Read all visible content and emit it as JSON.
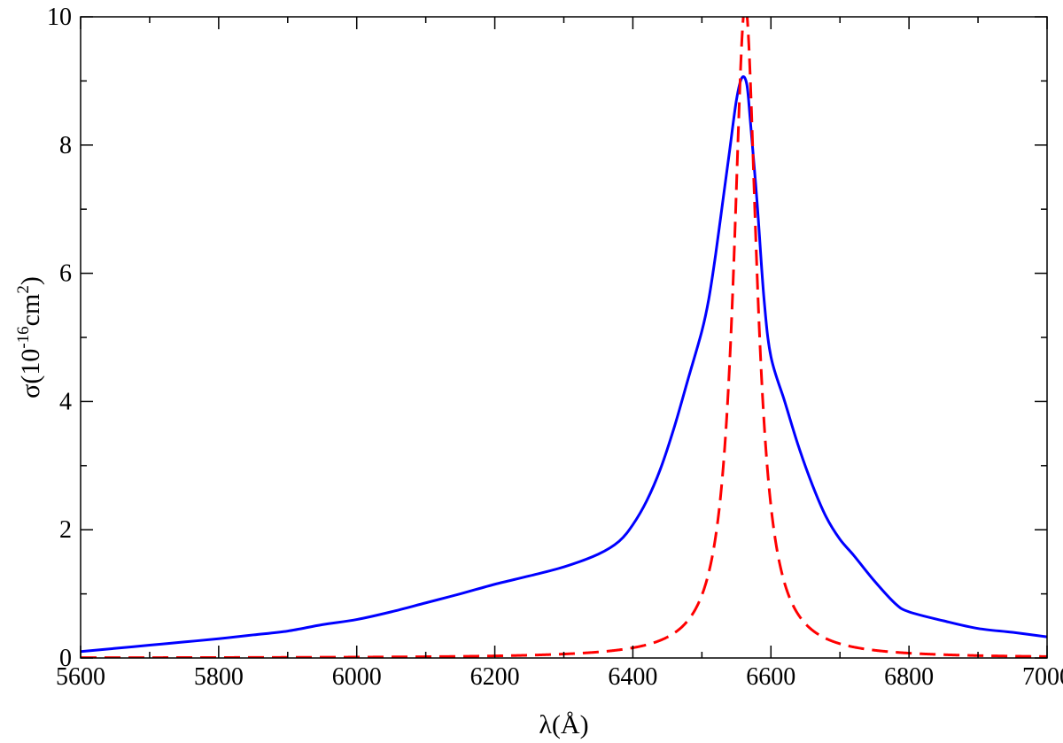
{
  "chart_data": {
    "type": "line",
    "xlabel": "λ(Å)",
    "ylabel_parts": {
      "prefix": "σ(10",
      "exp1": "-16",
      "mid": "cm",
      "exp2": "2",
      "suffix": ")"
    },
    "xlim": [
      5600,
      7000
    ],
    "ylim": [
      0,
      10
    ],
    "x_ticks": [
      5600,
      5800,
      6000,
      6200,
      6400,
      6600,
      6800,
      7000
    ],
    "y_ticks": [
      0,
      2,
      4,
      6,
      8,
      10
    ],
    "x_minor_step": 100,
    "y_minor_step": 1,
    "grid": false,
    "legend": "none",
    "series": [
      {
        "style": "solid",
        "color": "#0000ff",
        "x": [
          5600,
          5650,
          5700,
          5750,
          5800,
          5850,
          5900,
          5950,
          6000,
          6050,
          6100,
          6150,
          6200,
          6250,
          6300,
          6350,
          6380,
          6400,
          6420,
          6440,
          6460,
          6480,
          6500,
          6510,
          6520,
          6530,
          6540,
          6550,
          6558,
          6565,
          6570,
          6580,
          6590,
          6600,
          6620,
          6640,
          6660,
          6680,
          6700,
          6720,
          6750,
          6780,
          6800,
          6850,
          6900,
          6950,
          7000
        ],
        "y": [
          0.1,
          0.15,
          0.2,
          0.25,
          0.3,
          0.36,
          0.42,
          0.52,
          0.6,
          0.72,
          0.86,
          1.0,
          1.15,
          1.28,
          1.42,
          1.62,
          1.82,
          2.08,
          2.45,
          2.95,
          3.6,
          4.35,
          5.1,
          5.6,
          6.3,
          7.1,
          7.9,
          8.7,
          9.05,
          8.95,
          8.4,
          7.1,
          5.6,
          4.7,
          4.0,
          3.3,
          2.7,
          2.2,
          1.85,
          1.6,
          1.2,
          0.85,
          0.72,
          0.58,
          0.46,
          0.4,
          0.33
        ]
      },
      {
        "style": "dashed",
        "color": "#ff0000",
        "lorentz": {
          "center": 6562.8,
          "amplitude": 135.8,
          "halfwidth": 10.0
        },
        "x_start": 5600,
        "x_end": 7000,
        "y_max_clip": 10
      }
    ]
  }
}
